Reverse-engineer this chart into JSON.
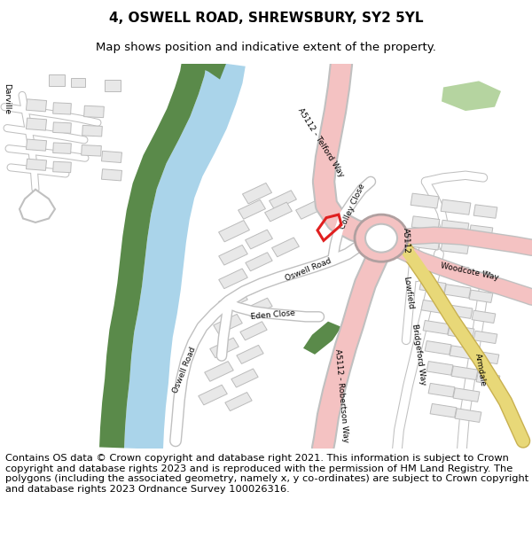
{
  "title": "4, OSWELL ROAD, SHREWSBURY, SY2 5YL",
  "subtitle": "Map shows position and indicative extent of the property.",
  "footer": "Contains OS data © Crown copyright and database right 2021. This information is subject to Crown copyright and database rights 2023 and is reproduced with the permission of HM Land Registry. The polygons (including the associated geometry, namely x, y co-ordinates) are subject to Crown copyright and database rights 2023 Ordnance Survey 100026316.",
  "title_fontsize": 11,
  "subtitle_fontsize": 9.5,
  "footer_fontsize": 8.2,
  "map_bg": "#ffffff",
  "river_color": "#aad4ea",
  "river_bank_color": "#5a8a4a",
  "road_major_color": "#f4c2c2",
  "road_minor_color": "#ffffff",
  "road_outline_color": "#c0c0c0",
  "building_color": "#e8e8e8",
  "building_edge_color": "#bbbbbb",
  "green_area_color": "#b5d4a0",
  "plot_color": "#e02020",
  "yellow_road_color": "#e8d878",
  "yellow_road_outline": "#c8b050"
}
